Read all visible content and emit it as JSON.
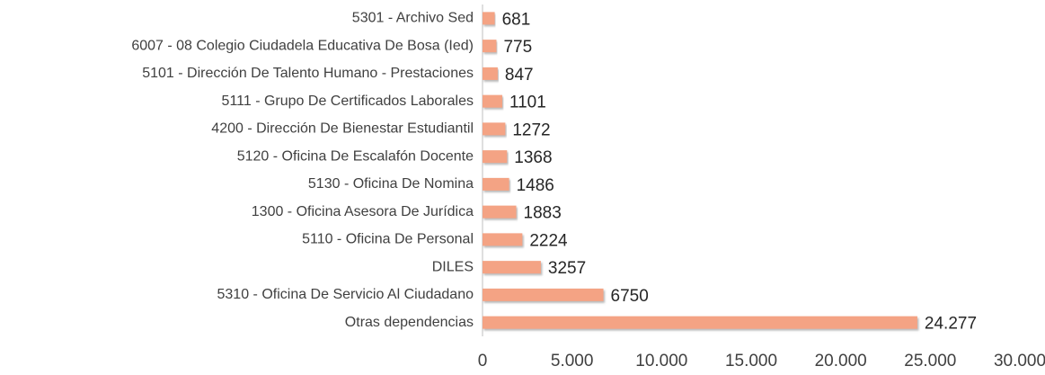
{
  "chart_data": {
    "type": "hbar",
    "categories": [
      "5301 - Archivo Sed",
      "6007 - 08 Colegio Ciudadela Educativa De Bosa (Ied)",
      "5101 - Dirección De Talento Humano - Prestaciones",
      "5111 - Grupo De Certificados Laborales",
      "4200 - Dirección De Bienestar Estudiantil",
      "5120 - Oficina De Escalafón Docente",
      "5130 - Oficina De Nomina",
      "1300 - Oficina Asesora De Jurídica",
      "5110 - Oficina De Personal",
      "DILES",
      "5310 - Oficina De Servicio Al Ciudadano",
      "Otras dependencias"
    ],
    "values": [
      681,
      775,
      847,
      1101,
      1272,
      1368,
      1486,
      1883,
      2224,
      3257,
      6750,
      24277
    ],
    "value_labels": [
      "681",
      "775",
      "847",
      "1101",
      "1272",
      "1368",
      "1486",
      "1883",
      "2224",
      "3257",
      "6750",
      "24.277"
    ],
    "color": "#f4a384",
    "xlim": [
      0,
      30000
    ],
    "xticks": [
      0,
      {
        "value": 5000,
        "label": "5.000"
      },
      {
        "value": 10000,
        "label": "10.000"
      },
      {
        "value": 15000,
        "label": "15.000"
      },
      {
        "value": 20000,
        "label": "20.000"
      },
      {
        "value": 25000,
        "label": "25.000"
      },
      {
        "value": 30000,
        "label": "30.000"
      }
    ],
    "grid": false
  }
}
